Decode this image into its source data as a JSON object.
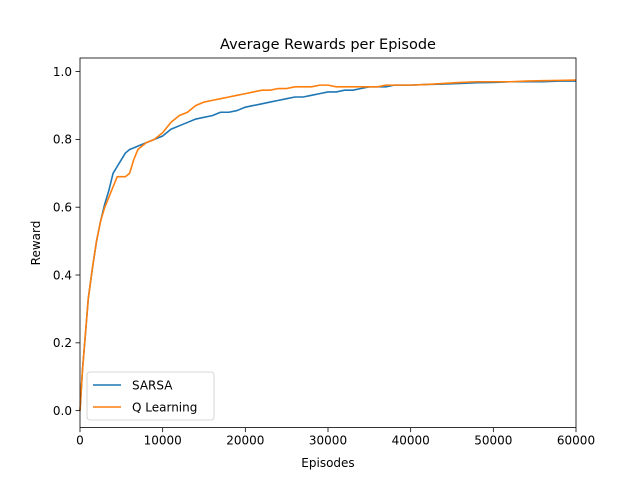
{
  "chart_data": {
    "type": "line",
    "title": "Average Rewards per Episode",
    "xlabel": "Episodes",
    "ylabel": "Reward",
    "xlim": [
      0,
      60000
    ],
    "ylim": [
      -0.05,
      1.04
    ],
    "xticks": [
      0,
      10000,
      20000,
      30000,
      40000,
      50000,
      60000
    ],
    "yticks": [
      0.0,
      0.2,
      0.4,
      0.6,
      0.8,
      1.0
    ],
    "xtick_labels": [
      "0",
      "10000",
      "20000",
      "30000",
      "40000",
      "50000",
      "60000"
    ],
    "ytick_labels": [
      "0.0",
      "0.2",
      "0.4",
      "0.6",
      "0.8",
      "1.0"
    ],
    "grid": false,
    "legend_position": "lower-left",
    "series": [
      {
        "name": "SARSA",
        "color": "#1f77b4",
        "x": [
          0,
          300,
          700,
          1000,
          1500,
          2000,
          2500,
          3000,
          3500,
          4000,
          4500,
          5000,
          5500,
          6000,
          6500,
          7000,
          8000,
          9000,
          10000,
          11000,
          12000,
          13000,
          14000,
          15000,
          16000,
          17000,
          18000,
          19000,
          20000,
          21000,
          22000,
          23000,
          24000,
          25000,
          26000,
          27000,
          28000,
          29000,
          30000,
          31000,
          32000,
          33000,
          34000,
          35000,
          36000,
          37000,
          38000,
          40000,
          42000,
          44000,
          46000,
          48000,
          50000,
          52000,
          54000,
          56000,
          58000,
          60000
        ],
        "y": [
          0.0,
          0.12,
          0.24,
          0.33,
          0.42,
          0.5,
          0.56,
          0.61,
          0.65,
          0.7,
          0.72,
          0.74,
          0.76,
          0.77,
          0.775,
          0.78,
          0.79,
          0.8,
          0.81,
          0.83,
          0.84,
          0.85,
          0.86,
          0.865,
          0.87,
          0.88,
          0.88,
          0.885,
          0.895,
          0.9,
          0.905,
          0.91,
          0.915,
          0.92,
          0.925,
          0.925,
          0.93,
          0.935,
          0.94,
          0.94,
          0.945,
          0.945,
          0.95,
          0.955,
          0.955,
          0.955,
          0.96,
          0.96,
          0.962,
          0.963,
          0.965,
          0.967,
          0.968,
          0.97,
          0.97,
          0.97,
          0.972,
          0.972
        ]
      },
      {
        "name": "Q Learning",
        "color": "#ff7f0e",
        "x": [
          0,
          300,
          700,
          1000,
          1500,
          2000,
          2500,
          3000,
          3500,
          4000,
          4500,
          5000,
          5500,
          6000,
          6500,
          7000,
          8000,
          9000,
          10000,
          11000,
          12000,
          13000,
          14000,
          15000,
          16000,
          17000,
          18000,
          19000,
          20000,
          21000,
          22000,
          23000,
          24000,
          25000,
          26000,
          27000,
          28000,
          29000,
          30000,
          31000,
          32000,
          33000,
          34000,
          35000,
          36000,
          37000,
          38000,
          40000,
          42000,
          44000,
          46000,
          48000,
          50000,
          52000,
          54000,
          56000,
          58000,
          60000
        ],
        "y": [
          0.0,
          0.12,
          0.24,
          0.33,
          0.42,
          0.5,
          0.56,
          0.6,
          0.63,
          0.66,
          0.69,
          0.69,
          0.69,
          0.7,
          0.74,
          0.77,
          0.79,
          0.8,
          0.82,
          0.85,
          0.87,
          0.88,
          0.9,
          0.91,
          0.915,
          0.92,
          0.925,
          0.93,
          0.935,
          0.94,
          0.945,
          0.945,
          0.95,
          0.95,
          0.955,
          0.955,
          0.955,
          0.96,
          0.96,
          0.955,
          0.955,
          0.955,
          0.955,
          0.955,
          0.955,
          0.96,
          0.96,
          0.96,
          0.962,
          0.965,
          0.968,
          0.97,
          0.97,
          0.97,
          0.972,
          0.973,
          0.974,
          0.975
        ]
      }
    ]
  }
}
